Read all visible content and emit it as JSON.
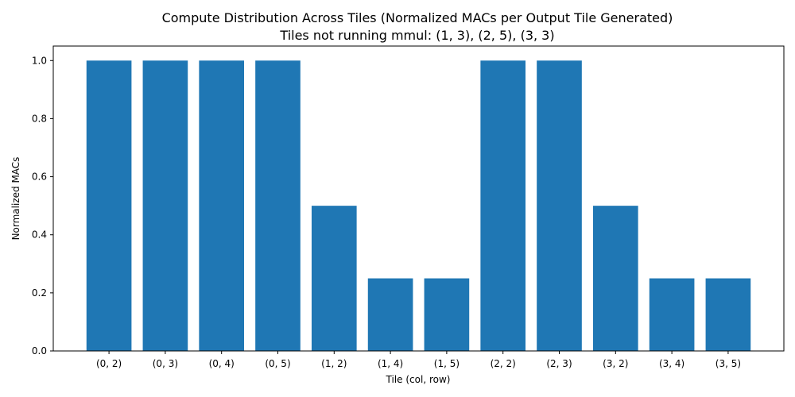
{
  "chart_data": {
    "type": "bar",
    "title": "Compute Distribution Across Tiles (Normalized MACs per Output Tile Generated)",
    "subtitle": "Tiles not running mmul: (1, 3), (2, 5), (3, 3)",
    "xlabel": "Tile (col, row)",
    "ylabel": "Normalized MACs",
    "categories": [
      "(0, 2)",
      "(0, 3)",
      "(0, 4)",
      "(0, 5)",
      "(1, 2)",
      "(1, 4)",
      "(1, 5)",
      "(2, 2)",
      "(2, 3)",
      "(3, 2)",
      "(3, 4)",
      "(3, 5)"
    ],
    "values": [
      1.0,
      1.0,
      1.0,
      1.0,
      0.5,
      0.25,
      0.25,
      1.0,
      1.0,
      0.5,
      0.25,
      0.25
    ],
    "ylim": [
      0,
      1.05
    ],
    "yticks": [
      0.0,
      0.2,
      0.4,
      0.6,
      0.8,
      1.0
    ],
    "ytick_labels": [
      "0.0",
      "0.2",
      "0.4",
      "0.6",
      "0.8",
      "1.0"
    ],
    "bar_color": "#1f77b4",
    "grid": false,
    "legend": false
  }
}
